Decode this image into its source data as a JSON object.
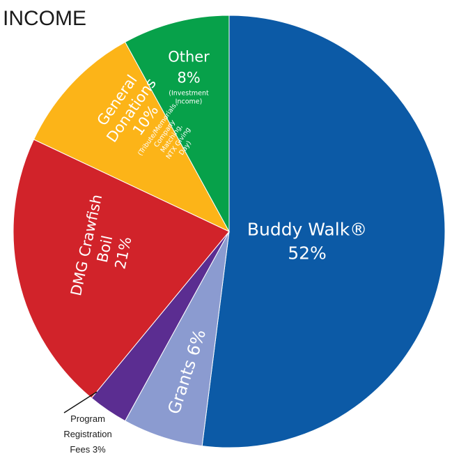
{
  "chart_data": {
    "type": "pie",
    "title": "INCOME",
    "start_angle_deg": 0,
    "direction": "clockwise",
    "slices": [
      {
        "key": "buddy",
        "lines": [
          "Buddy Walk®",
          "52%"
        ],
        "value": 52,
        "color": "#0c5aa6"
      },
      {
        "key": "grants",
        "lines": [
          "Grants 6%"
        ],
        "value": 6,
        "color": "#8b9bd0"
      },
      {
        "key": "program",
        "lines": [
          "Program",
          "Registration",
          "Fees 3%"
        ],
        "value": 3,
        "color": "#5b2d91"
      },
      {
        "key": "crawfish",
        "lines": [
          "DMG Crawfish",
          "Boil",
          "21%"
        ],
        "value": 21,
        "color": "#d1232a"
      },
      {
        "key": "donations",
        "lines": [
          "General",
          "Donations",
          "10%"
        ],
        "sublines": [
          "(Tribute/Memorials,",
          "Company",
          "Matching,",
          "NTX Giving",
          "Day)"
        ],
        "value": 10,
        "color": "#fcb418"
      },
      {
        "key": "other",
        "lines": [
          "Other",
          "8%"
        ],
        "sublines": [
          "(Investment",
          "Income)"
        ],
        "value": 8,
        "color": "#07a14a"
      }
    ]
  }
}
